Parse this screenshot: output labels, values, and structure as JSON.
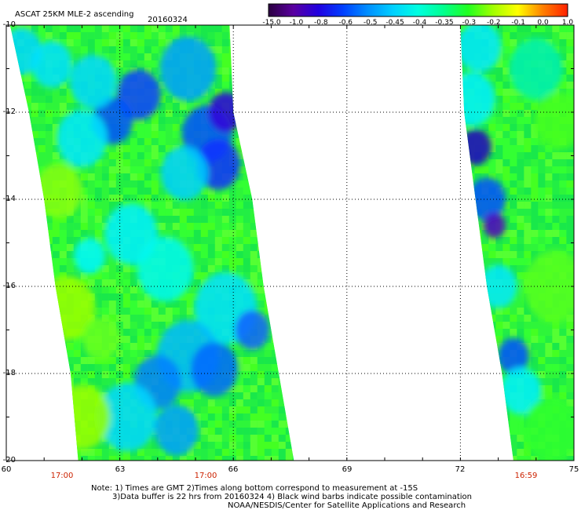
{
  "header": {
    "title": "ASCAT 25KM MLE-2 ascending",
    "date": "20160324"
  },
  "colorbar": {
    "labels": [
      "-15.0",
      "-1.0",
      "-0.8",
      "-0.6",
      "-0.5",
      "-0.45",
      "-0.4",
      "-0.35",
      "-0.3",
      "-0.2",
      "-0.1",
      "0.0",
      "1.0"
    ],
    "colors": [
      "#2a0040",
      "#5a00a0",
      "#2000e0",
      "#0040ff",
      "#0090ff",
      "#00d0ff",
      "#00ffe0",
      "#00ff90",
      "#20ff20",
      "#a0ff00",
      "#ffff00",
      "#ff8000",
      "#ff2000"
    ]
  },
  "axes": {
    "x_ticks": [
      "60",
      "63",
      "66",
      "69",
      "72",
      "75"
    ],
    "y_ticks": [
      "-10",
      "-12",
      "-14",
      "-16",
      "-18",
      "-20"
    ],
    "time_labels": [
      "17:00",
      "17:00",
      "16:59"
    ]
  },
  "notes": {
    "line1": "Note: 1) Times are GMT 2)Times along bottom correspond to measurement at -15S",
    "line2": "3)Data buffer is 22 hrs from 20160324 4) Black wind barbs indicate possible contamination",
    "line3": "NOAA/NESDIS/Center for Satellite Applications and Research"
  },
  "map_data": {
    "lon_range": [
      60,
      75
    ],
    "lat_range": [
      -20,
      -10
    ],
    "swaths": [
      {
        "name": "western-swath",
        "west_edge": [
          [
            -10,
            60.1
          ],
          [
            -12,
            60.6
          ],
          [
            -14,
            61.0
          ],
          [
            -16,
            61.3
          ],
          [
            -18,
            61.7
          ],
          [
            -20,
            61.9
          ]
        ],
        "east_edge": [
          [
            -10,
            65.9
          ],
          [
            -12,
            66.0
          ],
          [
            -14,
            66.5
          ],
          [
            -16,
            66.8
          ],
          [
            -18,
            67.2
          ],
          [
            -20,
            67.6
          ]
        ]
      },
      {
        "name": "eastern-swath",
        "west_edge": [
          [
            -10,
            72.0
          ],
          [
            -12,
            72.1
          ],
          [
            -14,
            72.4
          ],
          [
            -16,
            72.7
          ],
          [
            -18,
            73.1
          ],
          [
            -20,
            73.4
          ]
        ],
        "east_edge": [
          [
            -10,
            75
          ],
          [
            -20,
            75
          ]
        ]
      }
    ]
  }
}
